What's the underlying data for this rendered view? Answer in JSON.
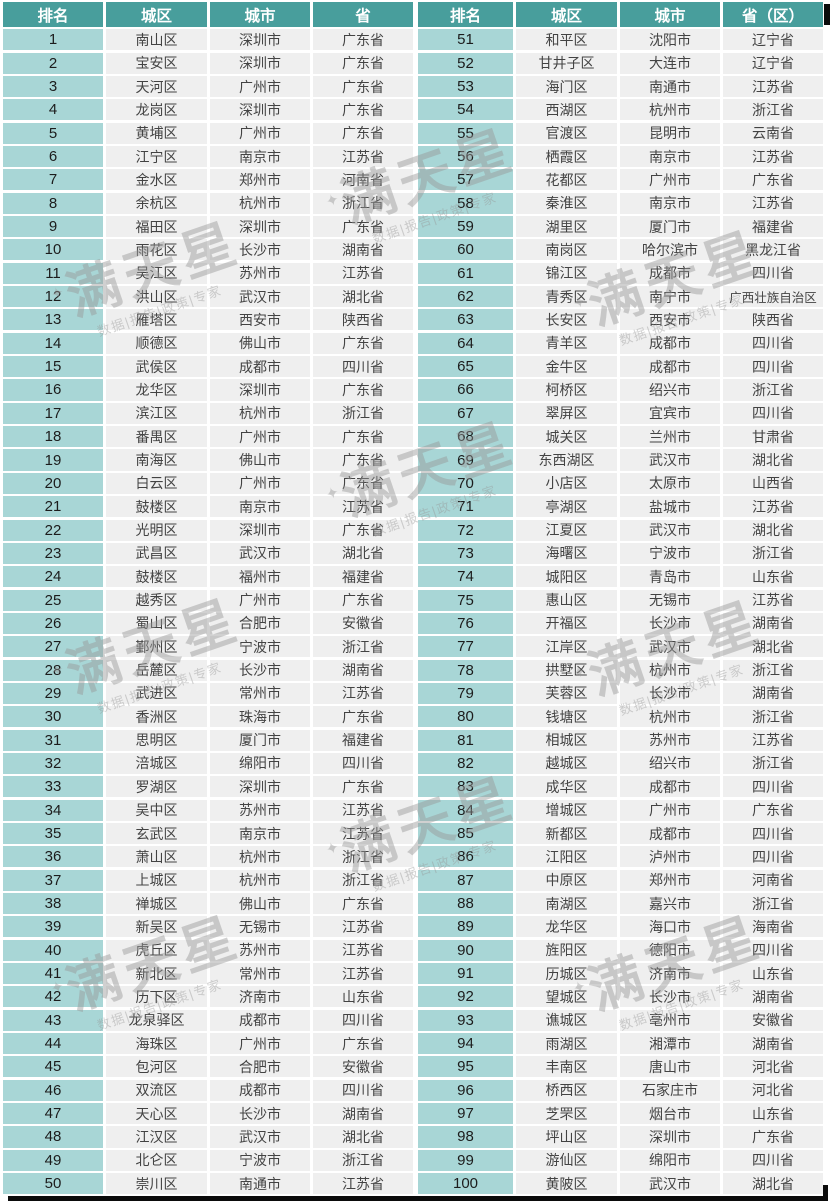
{
  "tables": {
    "left": {
      "headers": [
        "排名",
        "城区",
        "城市",
        "省"
      ],
      "rows": [
        [
          "1",
          "南山区",
          "深圳市",
          "广东省"
        ],
        [
          "2",
          "宝安区",
          "深圳市",
          "广东省"
        ],
        [
          "3",
          "天河区",
          "广州市",
          "广东省"
        ],
        [
          "4",
          "龙岗区",
          "深圳市",
          "广东省"
        ],
        [
          "5",
          "黄埔区",
          "广州市",
          "广东省"
        ],
        [
          "6",
          "江宁区",
          "南京市",
          "江苏省"
        ],
        [
          "7",
          "金水区",
          "郑州市",
          "河南省"
        ],
        [
          "8",
          "余杭区",
          "杭州市",
          "浙江省"
        ],
        [
          "9",
          "福田区",
          "深圳市",
          "广东省"
        ],
        [
          "10",
          "雨花区",
          "长沙市",
          "湖南省"
        ],
        [
          "11",
          "吴江区",
          "苏州市",
          "江苏省"
        ],
        [
          "12",
          "洪山区",
          "武汉市",
          "湖北省"
        ],
        [
          "13",
          "雁塔区",
          "西安市",
          "陕西省"
        ],
        [
          "14",
          "顺德区",
          "佛山市",
          "广东省"
        ],
        [
          "15",
          "武侯区",
          "成都市",
          "四川省"
        ],
        [
          "16",
          "龙华区",
          "深圳市",
          "广东省"
        ],
        [
          "17",
          "滨江区",
          "杭州市",
          "浙江省"
        ],
        [
          "18",
          "番禺区",
          "广州市",
          "广东省"
        ],
        [
          "19",
          "南海区",
          "佛山市",
          "广东省"
        ],
        [
          "20",
          "白云区",
          "广州市",
          "广东省"
        ],
        [
          "21",
          "鼓楼区",
          "南京市",
          "江苏省"
        ],
        [
          "22",
          "光明区",
          "深圳市",
          "广东省"
        ],
        [
          "23",
          "武昌区",
          "武汉市",
          "湖北省"
        ],
        [
          "24",
          "鼓楼区",
          "福州市",
          "福建省"
        ],
        [
          "25",
          "越秀区",
          "广州市",
          "广东省"
        ],
        [
          "26",
          "蜀山区",
          "合肥市",
          "安徽省"
        ],
        [
          "27",
          "鄞州区",
          "宁波市",
          "浙江省"
        ],
        [
          "28",
          "岳麓区",
          "长沙市",
          "湖南省"
        ],
        [
          "29",
          "武进区",
          "常州市",
          "江苏省"
        ],
        [
          "30",
          "香洲区",
          "珠海市",
          "广东省"
        ],
        [
          "31",
          "思明区",
          "厦门市",
          "福建省"
        ],
        [
          "32",
          "涪城区",
          "绵阳市",
          "四川省"
        ],
        [
          "33",
          "罗湖区",
          "深圳市",
          "广东省"
        ],
        [
          "34",
          "吴中区",
          "苏州市",
          "江苏省"
        ],
        [
          "35",
          "玄武区",
          "南京市",
          "江苏省"
        ],
        [
          "36",
          "萧山区",
          "杭州市",
          "浙江省"
        ],
        [
          "37",
          "上城区",
          "杭州市",
          "浙江省"
        ],
        [
          "38",
          "禅城区",
          "佛山市",
          "广东省"
        ],
        [
          "39",
          "新吴区",
          "无锡市",
          "江苏省"
        ],
        [
          "40",
          "虎丘区",
          "苏州市",
          "江苏省"
        ],
        [
          "41",
          "新北区",
          "常州市",
          "江苏省"
        ],
        [
          "42",
          "历下区",
          "济南市",
          "山东省"
        ],
        [
          "43",
          "龙泉驿区",
          "成都市",
          "四川省"
        ],
        [
          "44",
          "海珠区",
          "广州市",
          "广东省"
        ],
        [
          "45",
          "包河区",
          "合肥市",
          "安徽省"
        ],
        [
          "46",
          "双流区",
          "成都市",
          "四川省"
        ],
        [
          "47",
          "天心区",
          "长沙市",
          "湖南省"
        ],
        [
          "48",
          "江汉区",
          "武汉市",
          "湖北省"
        ],
        [
          "49",
          "北仑区",
          "宁波市",
          "浙江省"
        ],
        [
          "50",
          "崇川区",
          "南通市",
          "江苏省"
        ]
      ]
    },
    "right": {
      "headers": [
        "排名",
        "城区",
        "城市",
        "省（区）"
      ],
      "rows": [
        [
          "51",
          "和平区",
          "沈阳市",
          "辽宁省"
        ],
        [
          "52",
          "甘井子区",
          "大连市",
          "辽宁省"
        ],
        [
          "53",
          "海门区",
          "南通市",
          "江苏省"
        ],
        [
          "54",
          "西湖区",
          "杭州市",
          "浙江省"
        ],
        [
          "55",
          "官渡区",
          "昆明市",
          "云南省"
        ],
        [
          "56",
          "栖霞区",
          "南京市",
          "江苏省"
        ],
        [
          "57",
          "花都区",
          "广州市",
          "广东省"
        ],
        [
          "58",
          "秦淮区",
          "南京市",
          "江苏省"
        ],
        [
          "59",
          "湖里区",
          "厦门市",
          "福建省"
        ],
        [
          "60",
          "南岗区",
          "哈尔滨市",
          "黑龙江省"
        ],
        [
          "61",
          "锦江区",
          "成都市",
          "四川省"
        ],
        [
          "62",
          "青秀区",
          "南宁市",
          "广西壮族自治区"
        ],
        [
          "63",
          "长安区",
          "西安市",
          "陕西省"
        ],
        [
          "64",
          "青羊区",
          "成都市",
          "四川省"
        ],
        [
          "65",
          "金牛区",
          "成都市",
          "四川省"
        ],
        [
          "66",
          "柯桥区",
          "绍兴市",
          "浙江省"
        ],
        [
          "67",
          "翠屏区",
          "宜宾市",
          "四川省"
        ],
        [
          "68",
          "城关区",
          "兰州市",
          "甘肃省"
        ],
        [
          "69",
          "东西湖区",
          "武汉市",
          "湖北省"
        ],
        [
          "70",
          "小店区",
          "太原市",
          "山西省"
        ],
        [
          "71",
          "亭湖区",
          "盐城市",
          "江苏省"
        ],
        [
          "72",
          "江夏区",
          "武汉市",
          "湖北省"
        ],
        [
          "73",
          "海曙区",
          "宁波市",
          "浙江省"
        ],
        [
          "74",
          "城阳区",
          "青岛市",
          "山东省"
        ],
        [
          "75",
          "惠山区",
          "无锡市",
          "江苏省"
        ],
        [
          "76",
          "开福区",
          "长沙市",
          "湖南省"
        ],
        [
          "77",
          "江岸区",
          "武汉市",
          "湖北省"
        ],
        [
          "78",
          "拱墅区",
          "杭州市",
          "浙江省"
        ],
        [
          "79",
          "芙蓉区",
          "长沙市",
          "湖南省"
        ],
        [
          "80",
          "钱塘区",
          "杭州市",
          "浙江省"
        ],
        [
          "81",
          "相城区",
          "苏州市",
          "江苏省"
        ],
        [
          "82",
          "越城区",
          "绍兴市",
          "浙江省"
        ],
        [
          "83",
          "成华区",
          "成都市",
          "四川省"
        ],
        [
          "84",
          "增城区",
          "广州市",
          "广东省"
        ],
        [
          "85",
          "新都区",
          "成都市",
          "四川省"
        ],
        [
          "86",
          "江阳区",
          "泸州市",
          "四川省"
        ],
        [
          "87",
          "中原区",
          "郑州市",
          "河南省"
        ],
        [
          "88",
          "南湖区",
          "嘉兴市",
          "浙江省"
        ],
        [
          "89",
          "龙华区",
          "海口市",
          "海南省"
        ],
        [
          "90",
          "旌阳区",
          "德阳市",
          "四川省"
        ],
        [
          "91",
          "历城区",
          "济南市",
          "山东省"
        ],
        [
          "92",
          "望城区",
          "长沙市",
          "湖南省"
        ],
        [
          "93",
          "谯城区",
          "亳州市",
          "安徽省"
        ],
        [
          "94",
          "雨湖区",
          "湘潭市",
          "湖南省"
        ],
        [
          "95",
          "丰南区",
          "唐山市",
          "河北省"
        ],
        [
          "96",
          "桥西区",
          "石家庄市",
          "河北省"
        ],
        [
          "97",
          "芝罘区",
          "烟台市",
          "山东省"
        ],
        [
          "98",
          "坪山区",
          "深圳市",
          "广东省"
        ],
        [
          "99",
          "游仙区",
          "绵阳市",
          "四川省"
        ],
        [
          "100",
          "黄陂区",
          "武汉市",
          "湖北省"
        ]
      ]
    }
  },
  "watermark": {
    "sparkle": "✦",
    "title": "满天星",
    "subtitle": "数据|报告|政策|专家"
  },
  "colors": {
    "header_bg": "#489E9C",
    "rank_bg": "#A8D6D6",
    "cell_bg": "#EFEFEF"
  }
}
